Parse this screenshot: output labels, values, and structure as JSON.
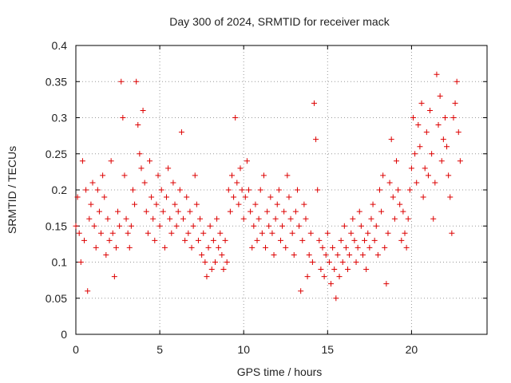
{
  "chart_data": {
    "type": "scatter",
    "title": "Day 300 of 2024, SRMTID for receiver mack",
    "xlabel": "GPS time / hours",
    "ylabel": "SRMTID / TECUs",
    "xlim": [
      0,
      24.5
    ],
    "ylim": [
      0,
      0.4
    ],
    "xticks": [
      0,
      5,
      10,
      15,
      20
    ],
    "yticks": [
      0,
      0.05,
      0.1,
      0.15,
      0.2,
      0.25,
      0.3,
      0.35,
      0.4
    ],
    "ytick_labels": [
      "0",
      "0.05",
      "0.1",
      "0.15",
      "0.2",
      "0.25",
      "0.3",
      "0.35",
      "0.4"
    ],
    "grid": true,
    "marker": "+",
    "series": [
      {
        "name": "mack",
        "color": "#dd0000",
        "x": [
          0.0,
          0.1,
          0.2,
          0.3,
          0.4,
          0.5,
          0.6,
          0.7,
          0.8,
          0.9,
          1.0,
          1.1,
          1.2,
          1.3,
          1.4,
          1.5,
          1.6,
          1.7,
          1.8,
          1.9,
          2.0,
          2.1,
          2.2,
          2.3,
          2.4,
          2.5,
          2.6,
          2.7,
          2.8,
          2.9,
          3.0,
          3.1,
          3.2,
          3.3,
          3.4,
          3.5,
          3.6,
          3.7,
          3.8,
          3.9,
          4.0,
          4.1,
          4.2,
          4.3,
          4.4,
          4.5,
          4.6,
          4.7,
          4.8,
          4.9,
          5.0,
          5.1,
          5.2,
          5.3,
          5.4,
          5.5,
          5.6,
          5.7,
          5.8,
          5.9,
          6.0,
          6.1,
          6.2,
          6.3,
          6.4,
          6.5,
          6.6,
          6.7,
          6.8,
          6.9,
          7.0,
          7.1,
          7.2,
          7.3,
          7.4,
          7.5,
          7.6,
          7.7,
          7.8,
          7.9,
          8.0,
          8.1,
          8.2,
          8.3,
          8.4,
          8.5,
          8.6,
          8.7,
          8.8,
          8.9,
          9.0,
          9.1,
          9.2,
          9.3,
          9.4,
          9.5,
          9.6,
          9.7,
          9.8,
          9.9,
          10.0,
          10.1,
          10.2,
          10.3,
          10.4,
          10.5,
          10.6,
          10.7,
          10.8,
          10.9,
          11.0,
          11.1,
          11.2,
          11.3,
          11.4,
          11.5,
          11.6,
          11.7,
          11.8,
          11.9,
          12.0,
          12.1,
          12.2,
          12.3,
          12.4,
          12.5,
          12.6,
          12.7,
          12.8,
          12.9,
          13.0,
          13.1,
          13.2,
          13.3,
          13.4,
          13.5,
          13.6,
          13.7,
          13.8,
          13.9,
          14.0,
          14.1,
          14.2,
          14.3,
          14.4,
          14.5,
          14.6,
          14.7,
          14.8,
          14.9,
          15.0,
          15.1,
          15.2,
          15.3,
          15.4,
          15.5,
          15.6,
          15.7,
          15.8,
          15.9,
          16.0,
          16.1,
          16.2,
          16.3,
          16.4,
          16.5,
          16.6,
          16.7,
          16.8,
          16.9,
          17.0,
          17.1,
          17.2,
          17.3,
          17.4,
          17.5,
          17.6,
          17.7,
          17.8,
          17.9,
          18.0,
          18.1,
          18.2,
          18.3,
          18.4,
          18.5,
          18.6,
          18.7,
          18.8,
          18.9,
          19.0,
          19.1,
          19.2,
          19.3,
          19.4,
          19.5,
          19.6,
          19.7,
          19.8,
          19.9,
          20.0,
          20.1,
          20.2,
          20.3,
          20.4,
          20.5,
          20.6,
          20.7,
          20.8,
          20.9,
          21.0,
          21.1,
          21.2,
          21.3,
          21.4,
          21.5,
          21.6,
          21.7,
          21.8,
          21.9,
          22.0,
          22.1,
          22.2,
          22.3,
          22.4,
          22.5,
          22.6,
          22.7,
          22.8,
          22.9
        ],
        "y": [
          0.15,
          0.19,
          0.14,
          0.1,
          0.24,
          0.13,
          0.2,
          0.06,
          0.16,
          0.18,
          0.21,
          0.15,
          0.12,
          0.2,
          0.17,
          0.14,
          0.22,
          0.19,
          0.11,
          0.16,
          0.13,
          0.24,
          0.14,
          0.08,
          0.12,
          0.17,
          0.15,
          0.35,
          0.3,
          0.22,
          0.16,
          0.14,
          0.12,
          0.15,
          0.2,
          0.18,
          0.35,
          0.29,
          0.25,
          0.23,
          0.31,
          0.21,
          0.17,
          0.14,
          0.24,
          0.19,
          0.16,
          0.13,
          0.18,
          0.22,
          0.15,
          0.2,
          0.17,
          0.12,
          0.19,
          0.23,
          0.16,
          0.14,
          0.21,
          0.18,
          0.15,
          0.17,
          0.2,
          0.28,
          0.16,
          0.13,
          0.19,
          0.14,
          0.17,
          0.12,
          0.15,
          0.22,
          0.18,
          0.13,
          0.16,
          0.11,
          0.14,
          0.1,
          0.08,
          0.12,
          0.15,
          0.09,
          0.13,
          0.1,
          0.16,
          0.12,
          0.14,
          0.11,
          0.09,
          0.13,
          0.1,
          0.2,
          0.17,
          0.22,
          0.19,
          0.3,
          0.21,
          0.18,
          0.23,
          0.2,
          0.16,
          0.19,
          0.24,
          0.2,
          0.17,
          0.12,
          0.15,
          0.18,
          0.13,
          0.16,
          0.2,
          0.14,
          0.22,
          0.12,
          0.17,
          0.15,
          0.19,
          0.14,
          0.11,
          0.16,
          0.18,
          0.2,
          0.13,
          0.15,
          0.17,
          0.12,
          0.22,
          0.19,
          0.16,
          0.14,
          0.11,
          0.17,
          0.2,
          0.15,
          0.06,
          0.13,
          0.18,
          0.16,
          0.08,
          0.11,
          0.14,
          0.1,
          0.32,
          0.27,
          0.2,
          0.13,
          0.09,
          0.12,
          0.08,
          0.11,
          0.14,
          0.1,
          0.07,
          0.12,
          0.09,
          0.05,
          0.11,
          0.08,
          0.13,
          0.1,
          0.15,
          0.12,
          0.09,
          0.11,
          0.14,
          0.16,
          0.13,
          0.1,
          0.12,
          0.17,
          0.15,
          0.11,
          0.13,
          0.09,
          0.14,
          0.12,
          0.16,
          0.18,
          0.13,
          0.15,
          0.11,
          0.2,
          0.17,
          0.22,
          0.12,
          0.07,
          0.14,
          0.21,
          0.27,
          0.19,
          0.16,
          0.24,
          0.2,
          0.18,
          0.13,
          0.17,
          0.14,
          0.12,
          0.16,
          0.2,
          0.23,
          0.3,
          0.25,
          0.21,
          0.29,
          0.26,
          0.32,
          0.19,
          0.23,
          0.28,
          0.22,
          0.31,
          0.25,
          0.16,
          0.21,
          0.36,
          0.29,
          0.33,
          0.24,
          0.27,
          0.3,
          0.26,
          0.22,
          0.19,
          0.14,
          0.3,
          0.32,
          0.35,
          0.28,
          0.24
        ]
      }
    ]
  }
}
